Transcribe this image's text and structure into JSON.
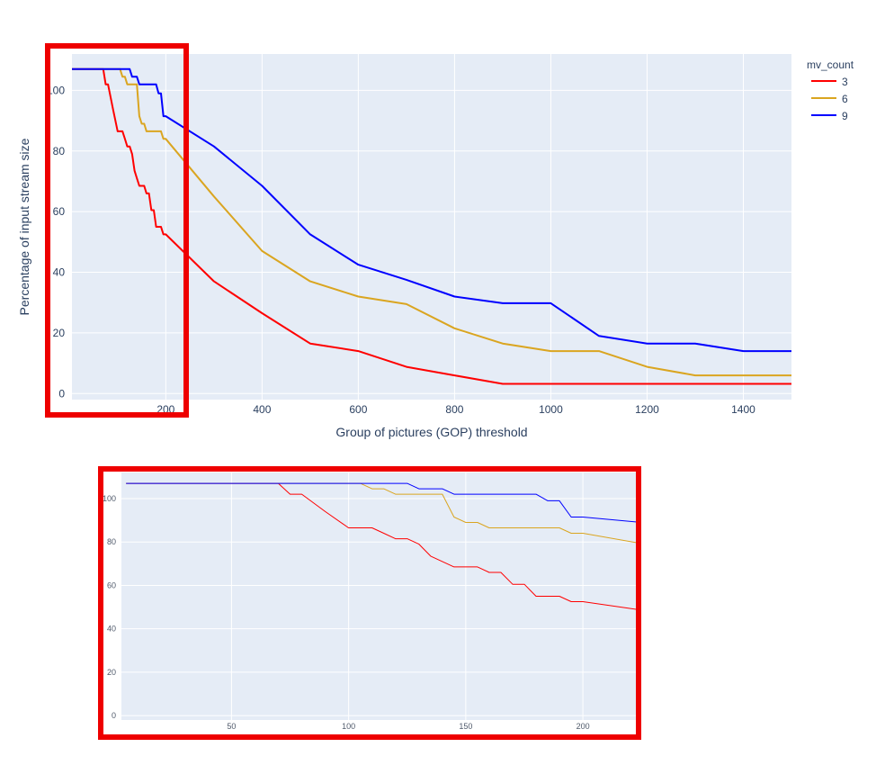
{
  "colors": {
    "plot_bg": "#e5ecf6",
    "grid": "#ffffff",
    "highlight": "#ee0000"
  },
  "chart_data": [
    {
      "type": "line",
      "xlabel": "Group of pictures (GOP) threshold",
      "ylabel": "Percentage of input stream size",
      "xlim": [
        5,
        1500
      ],
      "ylim": [
        -2,
        112
      ],
      "xticks": [
        200,
        400,
        600,
        800,
        1000,
        1200,
        1400
      ],
      "yticks": [
        0,
        20,
        40,
        60,
        80,
        100
      ],
      "grid": true,
      "legend": {
        "title": "mv_count",
        "placement": "top-right"
      },
      "series": [
        {
          "name": "3",
          "color": "#ff0000",
          "x": [
            5,
            70,
            75,
            80,
            90,
            100,
            110,
            115,
            120,
            125,
            130,
            135,
            140,
            145,
            150,
            155,
            160,
            165,
            170,
            175,
            180,
            190,
            195,
            200,
            300,
            400,
            500,
            600,
            700,
            800,
            900,
            1000,
            1100,
            1200,
            1300,
            1400,
            1500
          ],
          "y": [
            107,
            107,
            102,
            102,
            94,
            86.5,
            86.5,
            84,
            81.5,
            81.5,
            79,
            73.5,
            71,
            68.5,
            68.5,
            68.5,
            66,
            66,
            60.5,
            60.5,
            55,
            55,
            52.5,
            52.5,
            37,
            26.5,
            16.5,
            14,
            8.8,
            6,
            3.2,
            3.2,
            3.2,
            3.2,
            3.2,
            3.2,
            3.2
          ]
        },
        {
          "name": "6",
          "color": "#daa520",
          "x": [
            5,
            105,
            110,
            115,
            120,
            130,
            135,
            140,
            145,
            150,
            155,
            160,
            170,
            180,
            185,
            190,
            195,
            200,
            300,
            400,
            500,
            600,
            700,
            800,
            900,
            1000,
            1100,
            1200,
            1300,
            1400,
            1500
          ],
          "y": [
            107,
            107,
            104.5,
            104.5,
            102,
            102,
            102,
            102,
            91.5,
            89,
            89,
            86.5,
            86.5,
            86.5,
            86.5,
            86.5,
            84,
            84,
            65,
            47,
            37,
            32,
            29.5,
            21.5,
            16.5,
            14,
            14,
            8.8,
            6,
            6,
            6
          ]
        },
        {
          "name": "9",
          "color": "#0000ff",
          "x": [
            5,
            125,
            130,
            135,
            140,
            145,
            150,
            160,
            170,
            180,
            185,
            190,
            195,
            200,
            300,
            400,
            500,
            600,
            700,
            800,
            900,
            1000,
            1100,
            1200,
            1300,
            1400,
            1500
          ],
          "y": [
            107,
            107,
            104.5,
            104.5,
            104.5,
            102,
            102,
            102,
            102,
            102,
            99,
            99,
            91.5,
            91.5,
            81.5,
            68.5,
            52.5,
            42.5,
            37.5,
            32,
            29.8,
            29.8,
            19,
            16.5,
            16.5,
            14,
            14
          ]
        }
      ]
    },
    {
      "type": "line",
      "xlim": [
        3,
        223
      ],
      "ylim": [
        -2,
        112
      ],
      "xticks": [
        50,
        100,
        150,
        200
      ],
      "yticks": [
        0,
        20,
        40,
        60,
        80,
        100
      ],
      "grid": true
    }
  ]
}
